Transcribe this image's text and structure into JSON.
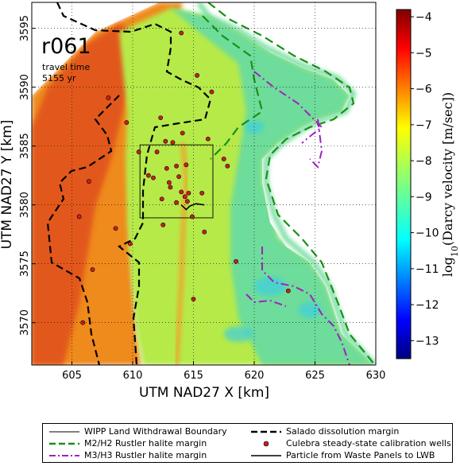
{
  "chart_data": {
    "type": "heatmap",
    "title": "r061",
    "annotation_lines": [
      "travel time",
      "5155 yr"
    ],
    "xlabel": "UTM NAD27 X [km]",
    "ylabel": "UTM NAD27 Y [km]",
    "xlim": [
      601.7,
      630
    ],
    "ylim": [
      3566.4,
      3597.2
    ],
    "xticks": [
      605,
      610,
      615,
      620,
      625,
      630
    ],
    "yticks": [
      3570,
      3575,
      3580,
      3585,
      3590,
      3595
    ],
    "grid": true,
    "colorbar": {
      "label": "log10(Darcy velocity [m/sec])",
      "label_base": "log",
      "label_sub": "10",
      "label_rest": "(Darcy velocity [m/sec])",
      "range": [
        -13.5,
        -3.8
      ],
      "ticks": [
        -4,
        -5,
        -6,
        -7,
        -8,
        -9,
        -10,
        -11,
        -12,
        -13
      ],
      "colormap": "jet"
    },
    "wipp_boundary": {
      "x": [
        610.6,
        616.6
      ],
      "y": [
        3578.9,
        3585.1
      ]
    },
    "calibration_wells": [
      [
        605.6,
        3579.0
      ],
      [
        605.9,
        3570.0
      ],
      [
        606.4,
        3582.0
      ],
      [
        606.7,
        3574.5
      ],
      [
        608.0,
        3589.1
      ],
      [
        608.6,
        3578.0
      ],
      [
        609.5,
        3587.0
      ],
      [
        609.8,
        3576.7
      ],
      [
        610.5,
        3584.5
      ],
      [
        611.3,
        3582.5
      ],
      [
        611.7,
        3582.3
      ],
      [
        612.0,
        3584.5
      ],
      [
        612.3,
        3587.4
      ],
      [
        612.4,
        3580.5
      ],
      [
        612.5,
        3578.3
      ],
      [
        612.7,
        3585.4
      ],
      [
        612.8,
        3583.1
      ],
      [
        613.0,
        3581.9
      ],
      [
        613.1,
        3581.5
      ],
      [
        613.3,
        3585.3
      ],
      [
        613.6,
        3583.3
      ],
      [
        613.6,
        3580.2
      ],
      [
        613.8,
        3582.4
      ],
      [
        614.0,
        3581.1
      ],
      [
        614.1,
        3586.1
      ],
      [
        614.3,
        3580.7
      ],
      [
        614.4,
        3583.4
      ],
      [
        614.5,
        3580.3
      ],
      [
        614.6,
        3581.0
      ],
      [
        614.9,
        3579.0
      ],
      [
        615.0,
        3572.0
      ],
      [
        615.3,
        3591.0
      ],
      [
        615.7,
        3581.0
      ],
      [
        615.9,
        3577.7
      ],
      [
        616.2,
        3585.6
      ],
      [
        616.5,
        3589.6
      ],
      [
        617.5,
        3583.9
      ],
      [
        617.8,
        3583.3
      ],
      [
        618.5,
        3575.2
      ],
      [
        622.8,
        3572.7
      ],
      [
        614.0,
        3594.6
      ]
    ],
    "legend": [
      {
        "label": "WIPP Land Withdrawal Boundary",
        "style": "thin-solid",
        "color": "#000000"
      },
      {
        "label": "Salado dissolution margin",
        "style": "dashed",
        "color": "#000000"
      },
      {
        "label": "M2/H2 Rustler halite margin",
        "style": "dashed",
        "color": "#1a8f1a"
      },
      {
        "label": "Culebra steady-state calibration wells",
        "style": "marker",
        "color": "#cc1f1f"
      },
      {
        "label": "M3/H3 Rustler halite margin",
        "style": "dash-dot",
        "color": "#a020c0"
      },
      {
        "label": "Particle from Waste Panels to LWB",
        "style": "solid",
        "color": "#000000"
      }
    ],
    "particle_path": [
      [
        614.0,
        3580.0
      ],
      [
        614.4,
        3579.6
      ],
      [
        614.7,
        3579.9
      ],
      [
        615.2,
        3580.1
      ],
      [
        615.9,
        3580.0
      ]
    ]
  }
}
